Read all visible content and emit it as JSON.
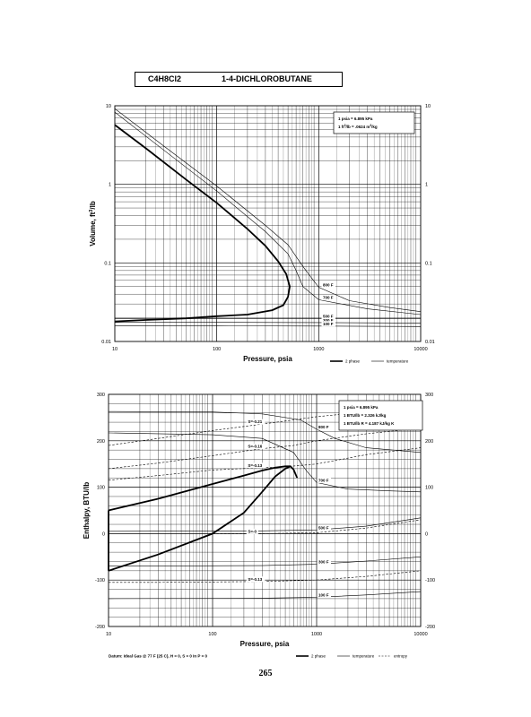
{
  "header": {
    "formula": "C4H8Cl2",
    "name": "1-4-DICHLOROBUTANE"
  },
  "page_number": "265",
  "chart_data": [
    {
      "type": "line",
      "xlabel": "Pressure,  psia",
      "ylabel": "Volume, ft^3/lb",
      "x_scale": "log",
      "y_scale": "log",
      "xlim": [
        10,
        10000
      ],
      "ylim": [
        0.01,
        10
      ],
      "x_ticks": [
        "10",
        "100",
        "1000",
        "10000"
      ],
      "y_ticks": [
        "0.01",
        "0.1",
        "1",
        "10"
      ],
      "y_ticks_right": [
        "0.01",
        "0.1",
        "1",
        "10"
      ],
      "grid": true,
      "conversion_notes": [
        "1 psia  =  6.895 kPa",
        "1 ft^3/lb  =  .0624 m^3/kg"
      ],
      "legend": {
        "placement": "bottom-right",
        "items": [
          "2 phase",
          "temperature"
        ]
      },
      "series": [
        {
          "name": "2 phase",
          "style": "thick",
          "points": [
            [
              10,
              5.7
            ],
            [
              20,
              2.9
            ],
            [
              50,
              1.15
            ],
            [
              100,
              0.58
            ],
            [
              200,
              0.27
            ],
            [
              300,
              0.165
            ],
            [
              400,
              0.105
            ],
            [
              480,
              0.072
            ],
            [
              520,
              0.05
            ],
            [
              500,
              0.037
            ],
            [
              450,
              0.029
            ],
            [
              350,
              0.025
            ],
            [
              200,
              0.022
            ],
            [
              100,
              0.021
            ],
            [
              50,
              0.0197
            ],
            [
              20,
              0.0188
            ],
            [
              10,
              0.018
            ]
          ]
        },
        {
          "label": "800 F",
          "style": "thin",
          "points": [
            [
              10,
              9.2
            ],
            [
              30,
              3.1
            ],
            [
              100,
              0.95
            ],
            [
              300,
              0.3
            ],
            [
              500,
              0.17
            ],
            [
              700,
              0.09
            ],
            [
              1000,
              0.049
            ],
            [
              2000,
              0.033
            ],
            [
              5000,
              0.027
            ],
            [
              10000,
              0.024
            ]
          ]
        },
        {
          "label": "700 F",
          "style": "thin",
          "points": [
            [
              10,
              8.3
            ],
            [
              30,
              2.75
            ],
            [
              100,
              0.82
            ],
            [
              300,
              0.25
            ],
            [
              500,
              0.13
            ],
            [
              600,
              0.08
            ],
            [
              700,
              0.05
            ],
            [
              1000,
              0.034
            ],
            [
              3000,
              0.026
            ],
            [
              10000,
              0.022
            ]
          ]
        },
        {
          "label": "500 F",
          "style": "thin",
          "points": [
            [
              10,
              0.0195
            ],
            [
              100,
              0.0196
            ],
            [
              1000,
              0.0196
            ],
            [
              10000,
              0.0196
            ]
          ]
        },
        {
          "label": "300 F",
          "style": "thin",
          "points": [
            [
              10,
              0.0175
            ],
            [
              100,
              0.0175
            ],
            [
              1000,
              0.0174
            ],
            [
              10000,
              0.0172
            ]
          ]
        },
        {
          "label": "100 F",
          "style": "thin",
          "points": [
            [
              10,
              0.0158
            ],
            [
              100,
              0.0158
            ],
            [
              1000,
              0.0157
            ],
            [
              10000,
              0.0155
            ]
          ]
        }
      ]
    },
    {
      "type": "line",
      "xlabel": "Pressure,  psia",
      "ylabel": "Enthalpy, BTU/lb",
      "x_scale": "log",
      "y_scale": "linear",
      "xlim": [
        10,
        10000
      ],
      "ylim": [
        -200,
        300
      ],
      "x_ticks": [
        "10",
        "100",
        "1000",
        "10000"
      ],
      "y_ticks": [
        "-200",
        "-100",
        "0",
        "100",
        "200",
        "300"
      ],
      "y_ticks_right": [
        "-200",
        "-100",
        "0",
        "100",
        "200",
        "300"
      ],
      "grid": true,
      "conversion_notes": [
        "1 psia  =  6.895 kPa",
        "1 BTU/lb  =  2.326 kJ/kg",
        "1 BTU/lb R  =  4.187 kJ/kg K"
      ],
      "datum": "Datum: Ideal Gas @ 77 F (25 C),  H = 0,  S = 0 In P = 0",
      "legend": {
        "placement": "bottom-right",
        "items": [
          "2 phase",
          "temperature",
          "entropy"
        ]
      },
      "series": [
        {
          "name": "2 phase",
          "style": "thick",
          "points": [
            [
              10,
              -80
            ],
            [
              30,
              -45
            ],
            [
              100,
              0
            ],
            [
              200,
              45
            ],
            [
              300,
              90
            ],
            [
              400,
              123
            ],
            [
              500,
              140
            ],
            [
              560,
              145
            ],
            [
              600,
              138
            ],
            [
              650,
              120
            ]
          ]
        },
        {
          "name": "2 phase",
          "style": "thick",
          "points": [
            [
              10,
              50
            ],
            [
              30,
              75
            ],
            [
              100,
              107
            ],
            [
              200,
              125
            ],
            [
              300,
              136
            ],
            [
              400,
              142
            ],
            [
              500,
              145
            ],
            [
              560,
              145
            ]
          ]
        },
        {
          "name": "2 phase",
          "style": "thick",
          "points": [
            [
              10,
              -80
            ],
            [
              10,
              50
            ]
          ]
        },
        {
          "label": "800 F",
          "style": "thin",
          "points": [
            [
              10,
              263
            ],
            [
              100,
              262
            ],
            [
              300,
              258
            ],
            [
              700,
              245
            ],
            [
              1000,
              225
            ],
            [
              1500,
              205
            ],
            [
              3000,
              185
            ],
            [
              10000,
              175
            ]
          ]
        },
        {
          "label": "700 F",
          "style": "thin",
          "points": [
            [
              10,
              217
            ],
            [
              100,
              213
            ],
            [
              300,
              205
            ],
            [
              600,
              175
            ],
            [
              800,
              135
            ],
            [
              1000,
              110
            ],
            [
              2000,
              96
            ],
            [
              5000,
              92
            ],
            [
              10000,
              90
            ]
          ]
        },
        {
          "label": "500 F",
          "style": "thin",
          "points": [
            [
              10,
              5
            ],
            [
              300,
              6
            ],
            [
              1000,
              8
            ],
            [
              3000,
              16
            ],
            [
              10000,
              34
            ]
          ]
        },
        {
          "label": "300 F",
          "style": "thin",
          "points": [
            [
              10,
              -70
            ],
            [
              300,
              -69
            ],
            [
              1000,
              -66
            ],
            [
              3000,
              -59
            ],
            [
              10000,
              -50
            ]
          ]
        },
        {
          "label": "100 F",
          "style": "thin",
          "points": [
            [
              10,
              -140
            ],
            [
              300,
              -139
            ],
            [
              1000,
              -137
            ],
            [
              3000,
              -132
            ],
            [
              10000,
              -125
            ]
          ]
        },
        {
          "label": "S=-0.21",
          "style": "dashed",
          "points": [
            [
              10,
              190
            ],
            [
              30,
              205
            ],
            [
              100,
              222
            ],
            [
              300,
              236
            ],
            [
              600,
              245
            ],
            [
              1000,
              252
            ],
            [
              3000,
              262
            ],
            [
              10000,
              270
            ]
          ]
        },
        {
          "label": "S=-0.16",
          "style": "dashed",
          "points": [
            [
              10,
              140
            ],
            [
              30,
              152
            ],
            [
              100,
              168
            ],
            [
              300,
              183
            ],
            [
              600,
              190
            ],
            [
              1000,
              200
            ],
            [
              3000,
              215
            ],
            [
              10000,
              227
            ]
          ]
        },
        {
          "label": "S=-0.13",
          "style": "dashed",
          "points": [
            [
              10,
              115
            ],
            [
              30,
              125
            ],
            [
              100,
              137
            ],
            [
              300,
              142
            ],
            [
              500,
              144
            ],
            [
              1000,
              150
            ],
            [
              3000,
              170
            ],
            [
              10000,
              185
            ]
          ]
        },
        {
          "label": "S=-0",
          "style": "dashed",
          "points": [
            [
              100,
              0
            ],
            [
              300,
              0
            ],
            [
              1000,
              2
            ],
            [
              3000,
              12
            ],
            [
              10000,
              30
            ]
          ]
        },
        {
          "label": "S=-0.13",
          "style": "dashed",
          "points": [
            [
              10,
              -105
            ],
            [
              30,
              -105
            ],
            [
              100,
              -104
            ],
            [
              300,
              -103
            ],
            [
              1000,
              -100
            ],
            [
              3000,
              -92
            ],
            [
              10000,
              -80
            ]
          ]
        }
      ]
    }
  ]
}
